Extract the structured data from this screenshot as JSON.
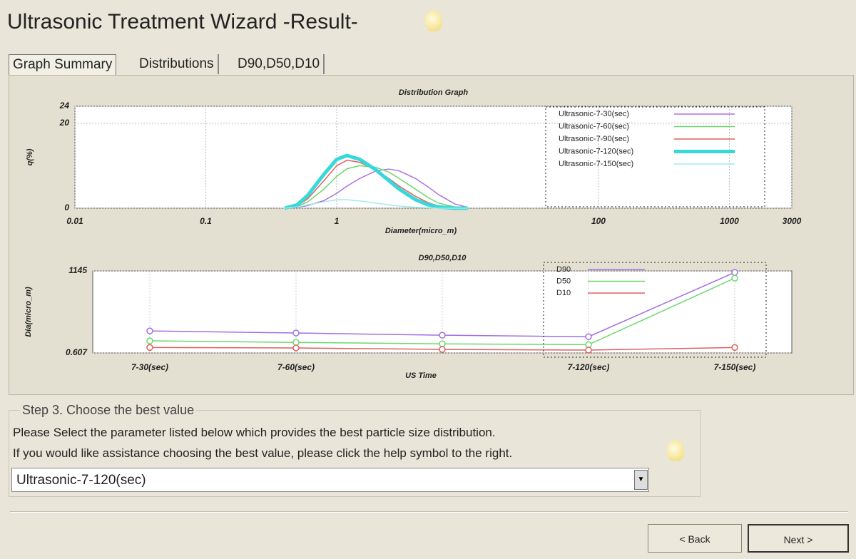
{
  "header": {
    "title": "Ultrasonic Treatment Wizard -Result-"
  },
  "tabs": [
    "Graph Summary",
    "Distributions",
    "D90,D50,D10"
  ],
  "chart_data": [
    {
      "type": "line",
      "title": "Distribution Graph",
      "x_label": "Diameter(micro_m)",
      "y_label": "q(%)",
      "x": [
        0.4,
        0.5,
        0.6,
        0.8,
        1,
        1.2,
        1.5,
        2,
        2.5,
        3,
        4,
        5,
        6,
        8,
        10
      ],
      "series": [
        {
          "name": "Ultrasonic-7-30(sec)",
          "color": "#b070e0",
          "line_width": 1.5,
          "values": [
            0,
            0.2,
            0.6,
            1.8,
            3.5,
            5.2,
            7,
            8.8,
            9.2,
            8.8,
            7,
            5,
            3.2,
            1,
            0.2
          ]
        },
        {
          "name": "Ultrasonic-7-60(sec)",
          "color": "#6cd86c",
          "line_width": 1.5,
          "values": [
            0,
            0.4,
            1.5,
            4.5,
            7.5,
            9.3,
            10,
            9.6,
            8.5,
            7,
            4.5,
            2.5,
            1.2,
            0.3,
            0
          ]
        },
        {
          "name": "Ultrasonic-7-90(sec)",
          "color": "#e06060",
          "line_width": 1.5,
          "values": [
            0,
            0.6,
            2.2,
            6.5,
            10,
            11.3,
            10.8,
            9,
            7,
            5.2,
            2.8,
            1.3,
            0.5,
            0.1,
            0
          ]
        },
        {
          "name": "Ultrasonic-7-120(sec)",
          "color": "#38d8d8",
          "line_width": 5,
          "values": [
            0,
            0.8,
            3,
            8,
            11.5,
            12.4,
            11.5,
            9,
            6.5,
            4.5,
            2,
            0.8,
            0.3,
            0,
            0
          ]
        },
        {
          "name": "Ultrasonic-7-150(sec)",
          "color": "#a0eaea",
          "line_width": 1.5,
          "values": [
            0,
            0.3,
            0.8,
            1.5,
            2,
            2,
            1.7,
            1.2,
            0.8,
            0.5,
            0.2,
            0.1,
            0,
            0,
            0
          ]
        }
      ],
      "xlim": [
        0.01,
        3000
      ],
      "xticks": [
        0.01,
        0.1,
        1,
        100,
        1000,
        3000
      ],
      "x_log": true,
      "ylim": [
        0,
        24
      ],
      "yticks": [
        0,
        20,
        24
      ],
      "grid": true,
      "legend": "upper right",
      "markers": false
    },
    {
      "type": "line",
      "title": "D90,D50,D10",
      "x_label": "US Time",
      "y_label": "Dia(micro_m)",
      "categories": [
        "7-30(sec)",
        "7-60(sec)",
        null,
        "7-120(sec)",
        "7-150(sec)"
      ],
      "series": [
        {
          "name": "D90",
          "color": "#a070e0",
          "line_width": 1.5,
          "values": [
            4.6,
            3.8,
            3.1,
            2.7,
            1000
          ]
        },
        {
          "name": "D50",
          "color": "#6cd86c",
          "line_width": 1.5,
          "values": [
            1.85,
            1.6,
            1.4,
            1.3,
            590
          ]
        },
        {
          "name": "D10",
          "color": "#e06060",
          "line_width": 1.5,
          "values": [
            1,
            0.96,
            0.84,
            0.79,
            1
          ]
        }
      ],
      "ylim": [
        0.607,
        1145
      ],
      "yticks": [
        0.607,
        1145
      ],
      "y_log": true,
      "grid": true,
      "legend": "upper right",
      "markers": true
    }
  ],
  "step": {
    "legend": "Step 3. Choose the best value",
    "lines": [
      "Please Select the parameter listed below which provides the best particle size distribution.",
      "If you would like assistance choosing the best value, please click the help symbol to the right."
    ],
    "selected": "Ultrasonic-7-120(sec)"
  },
  "buttons": [
    "< Back",
    "Next >"
  ]
}
